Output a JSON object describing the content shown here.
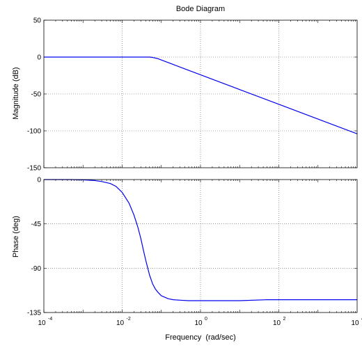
{
  "chart_data": [
    {
      "type": "line",
      "title": "Bode Diagram",
      "xlabel": "Frequency  (rad/sec)",
      "ylabel": "Magnitude (dB)",
      "xscale": "log",
      "xlim": [
        0.0001,
        10000
      ],
      "ylim": [
        -150,
        50
      ],
      "yticks": [
        50,
        0,
        -50,
        -100,
        -150
      ],
      "ytick_labels": [
        "50",
        "0",
        "-50",
        "-100",
        "-150"
      ],
      "grid": true,
      "series": [
        {
          "color": "#0000ee",
          "x": [
            0.0001,
            0.0003,
            0.001,
            0.003,
            0.01,
            0.02,
            0.03,
            0.04,
            0.05,
            0.06,
            0.08,
            0.1,
            0.2,
            0.5,
            1,
            10,
            100,
            1000,
            10000
          ],
          "y": [
            0,
            0,
            0,
            0,
            0,
            0,
            0,
            0,
            0,
            -0.5,
            -2,
            -4,
            -10,
            -18,
            -24,
            -44,
            -64,
            -84,
            -104
          ]
        }
      ]
    },
    {
      "type": "line",
      "xlabel": "Frequency  (rad/sec)",
      "ylabel": "Phase (deg)",
      "xscale": "log",
      "xlim": [
        0.0001,
        10000
      ],
      "ylim": [
        -135,
        0
      ],
      "yticks": [
        0,
        -45,
        -90,
        -135
      ],
      "ytick_labels": [
        "0",
        "-45",
        "-90",
        "-135"
      ],
      "xticks": [
        0.0001,
        0.01,
        1,
        100,
        10000
      ],
      "xtick_labels": [
        {
          "base": "10",
          "exp": "-4"
        },
        {
          "base": "10",
          "exp": "-2"
        },
        {
          "base": "10",
          "exp": "0"
        },
        {
          "base": "10",
          "exp": "2"
        },
        {
          "base": "10",
          "exp": "4"
        }
      ],
      "grid": true,
      "series": [
        {
          "color": "#0000ee",
          "x": [
            0.0001,
            0.0005,
            0.001,
            0.002,
            0.003,
            0.005,
            0.007,
            0.01,
            0.015,
            0.02,
            0.025,
            0.03,
            0.035,
            0.04,
            0.05,
            0.06,
            0.07,
            0.08,
            0.1,
            0.15,
            0.2,
            0.3,
            0.5,
            1,
            5,
            10,
            50,
            100,
            1000,
            10000
          ],
          "y": [
            0,
            0,
            -0.3,
            -1,
            -2,
            -4,
            -7,
            -13,
            -24,
            -36,
            -48,
            -60,
            -72,
            -82,
            -97,
            -106,
            -111,
            -114,
            -118,
            -121,
            -122,
            -122.5,
            -123,
            -123,
            -123,
            -123,
            -122,
            -122,
            -122,
            -122
          ]
        }
      ]
    }
  ]
}
